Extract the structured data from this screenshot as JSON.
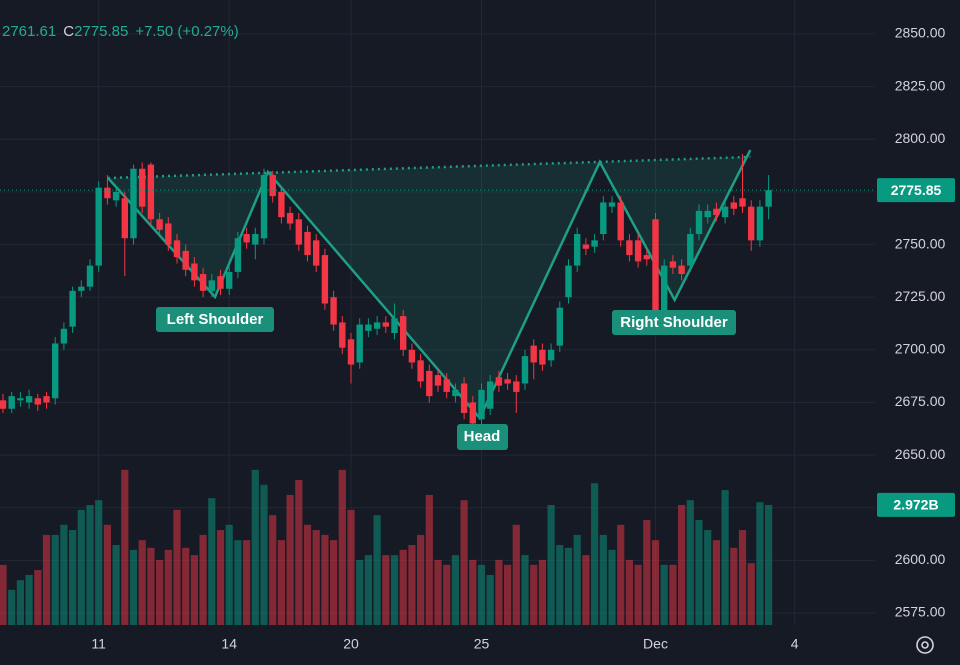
{
  "chart_data": {
    "type": "candlestick",
    "header": {
      "low": "2761.61",
      "close_label": "C",
      "close": "2775.85",
      "change": "+7.50 (+0.27%)"
    },
    "up_color": "#089981",
    "down_color": "#f23645",
    "pattern_color": "#1f9e88",
    "grid": true,
    "ylim": [
      2569.3,
      2866.15
    ],
    "yticks": [
      {
        "value": 2575,
        "label": "2575.00"
      },
      {
        "value": 2600,
        "label": "2600.00"
      },
      {
        "value": 2625,
        "label": "2625.00"
      },
      {
        "value": 2650,
        "label": "2650.00"
      },
      {
        "value": 2675,
        "label": "2675.00"
      },
      {
        "value": 2700,
        "label": "2700.00"
      },
      {
        "value": 2725,
        "label": "2725.00"
      },
      {
        "value": 2750,
        "label": "2750.00"
      },
      {
        "value": 2775,
        "label": "2775.00"
      },
      {
        "value": 2800,
        "label": "2800.00"
      },
      {
        "value": 2825,
        "label": "2825.00"
      },
      {
        "value": 2850,
        "label": "2850.00"
      }
    ],
    "xticks": [
      {
        "value": 11,
        "label": "11"
      },
      {
        "value": 26,
        "label": "14"
      },
      {
        "value": 40,
        "label": "20"
      },
      {
        "value": 55,
        "label": "25"
      },
      {
        "value": 75,
        "label": "Dec"
      },
      {
        "value": 91,
        "label": "4"
      }
    ],
    "last_price": {
      "value": 2775.85,
      "label": "2775.85"
    },
    "volume_lim": [
      0,
      15.47
    ],
    "last_volume": {
      "value": 2.972,
      "label": "2.972B"
    },
    "ohlc": [
      [
        2676,
        2679,
        2670,
        2672
      ],
      [
        2672,
        2680,
        2670,
        2678
      ],
      [
        2676,
        2680,
        2673,
        2677
      ],
      [
        2675,
        2681,
        2672,
        2678
      ],
      [
        2677,
        2679,
        2671,
        2674
      ],
      [
        2678,
        2680,
        2672,
        2675
      ],
      [
        2677,
        2706,
        2674,
        2703
      ],
      [
        2703,
        2713,
        2700,
        2710
      ],
      [
        2711,
        2730,
        2708,
        2728
      ],
      [
        2728,
        2733,
        2725,
        2730
      ],
      [
        2730,
        2743,
        2728,
        2740
      ],
      [
        2740,
        2780,
        2737,
        2777
      ],
      [
        2777,
        2783,
        2769,
        2772
      ],
      [
        2771,
        2778,
        2768,
        2775
      ],
      [
        2772,
        2775,
        2735,
        2753
      ],
      [
        2753,
        2788,
        2750,
        2786
      ],
      [
        2786,
        2789,
        2765,
        2768
      ],
      [
        2788,
        2789,
        2759,
        2762
      ],
      [
        2762,
        2765,
        2754,
        2757
      ],
      [
        2760,
        2763,
        2747,
        2750
      ],
      [
        2752,
        2755,
        2741,
        2744
      ],
      [
        2747,
        2750,
        2735,
        2738
      ],
      [
        2741,
        2744,
        2730,
        2733
      ],
      [
        2736,
        2739,
        2725,
        2728
      ],
      [
        2728,
        2736,
        2725,
        2733
      ],
      [
        2735,
        2738,
        2726,
        2729
      ],
      [
        2729,
        2740,
        2726,
        2737
      ],
      [
        2737,
        2756,
        2734,
        2753
      ],
      [
        2755,
        2758,
        2748,
        2751
      ],
      [
        2750,
        2758,
        2743,
        2755
      ],
      [
        2753,
        2786,
        2750,
        2783
      ],
      [
        2783,
        2785,
        2770,
        2773
      ],
      [
        2775,
        2778,
        2760,
        2763
      ],
      [
        2765,
        2768,
        2757,
        2760
      ],
      [
        2762,
        2765,
        2747,
        2750
      ],
      [
        2756,
        2759,
        2742,
        2745
      ],
      [
        2752,
        2755,
        2737,
        2740
      ],
      [
        2745,
        2748,
        2719,
        2722
      ],
      [
        2725,
        2728,
        2709,
        2712
      ],
      [
        2713,
        2716,
        2698,
        2701
      ],
      [
        2705,
        2708,
        2684,
        2693
      ],
      [
        2694,
        2715,
        2691,
        2712
      ],
      [
        2709,
        2715,
        2706,
        2712
      ],
      [
        2710,
        2716,
        2707,
        2713
      ],
      [
        2713,
        2716,
        2708,
        2711
      ],
      [
        2708,
        2722,
        2705,
        2715
      ],
      [
        2716,
        2719,
        2697,
        2700
      ],
      [
        2700,
        2703,
        2691,
        2694
      ],
      [
        2695,
        2698,
        2682,
        2685
      ],
      [
        2690,
        2693,
        2675,
        2678
      ],
      [
        2688,
        2691,
        2680,
        2683
      ],
      [
        2686,
        2689,
        2677,
        2680
      ],
      [
        2678,
        2684,
        2675,
        2681
      ],
      [
        2684,
        2687,
        2667,
        2670
      ],
      [
        2675,
        2678,
        2662,
        2665
      ],
      [
        2667,
        2684,
        2664,
        2681
      ],
      [
        2672,
        2688,
        2669,
        2685
      ],
      [
        2687,
        2690,
        2680,
        2683
      ],
      [
        2686,
        2689,
        2681,
        2684
      ],
      [
        2685,
        2688,
        2670,
        2680
      ],
      [
        2684,
        2700,
        2681,
        2697
      ],
      [
        2702,
        2705,
        2686,
        2694
      ],
      [
        2700,
        2703,
        2690,
        2693
      ],
      [
        2695,
        2703,
        2692,
        2700
      ],
      [
        2702,
        2723,
        2699,
        2720
      ],
      [
        2725,
        2743,
        2722,
        2740
      ],
      [
        2740,
        2758,
        2737,
        2755
      ],
      [
        2750,
        2753,
        2745,
        2748
      ],
      [
        2749,
        2755,
        2746,
        2752
      ],
      [
        2755,
        2773,
        2752,
        2770
      ],
      [
        2768,
        2773,
        2765,
        2770
      ],
      [
        2770,
        2773,
        2749,
        2752
      ],
      [
        2752,
        2755,
        2742,
        2745
      ],
      [
        2752,
        2755,
        2739,
        2742
      ],
      [
        2745,
        2748,
        2740,
        2743
      ],
      [
        2762,
        2765,
        2715,
        2718
      ],
      [
        2718,
        2743,
        2715,
        2740
      ],
      [
        2742,
        2745,
        2736,
        2739
      ],
      [
        2740,
        2743,
        2733,
        2736
      ],
      [
        2740,
        2758,
        2737,
        2755
      ],
      [
        2755,
        2769,
        2752,
        2766
      ],
      [
        2763,
        2769,
        2760,
        2766
      ],
      [
        2767,
        2770,
        2761,
        2764
      ],
      [
        2763,
        2771,
        2760,
        2768
      ],
      [
        2770,
        2773,
        2764,
        2767
      ],
      [
        2772,
        2793,
        2765,
        2768
      ],
      [
        2768,
        2771,
        2747,
        2752
      ],
      [
        2752,
        2771,
        2749,
        2768
      ],
      [
        2768,
        2783,
        2762,
        2775.85
      ]
    ],
    "volume": [
      1.49,
      0.87,
      1.11,
      1.24,
      1.36,
      2.23,
      2.23,
      2.48,
      2.35,
      2.85,
      2.97,
      3.09,
      2.48,
      1.98,
      3.84,
      1.86,
      2.1,
      1.91,
      1.61,
      1.86,
      2.85,
      1.91,
      1.73,
      2.23,
      3.14,
      2.35,
      2.48,
      2.1,
      2.1,
      3.84,
      3.47,
      2.72,
      2.1,
      3.22,
      3.59,
      2.48,
      2.35,
      2.23,
      2.1,
      3.84,
      2.85,
      1.61,
      1.73,
      2.72,
      1.73,
      1.73,
      1.86,
      1.98,
      2.23,
      3.22,
      1.61,
      1.49,
      1.73,
      3.09,
      1.61,
      1.49,
      1.24,
      1.61,
      1.49,
      2.48,
      1.73,
      1.49,
      1.61,
      2.97,
      1.98,
      1.91,
      2.23,
      1.73,
      3.51,
      2.23,
      1.86,
      2.48,
      1.61,
      1.49,
      2.6,
      2.1,
      1.49,
      1.49,
      2.97,
      3.09,
      2.6,
      2.35,
      2.1,
      3.34,
      1.91,
      2.35,
      1.53,
      3.04,
      2.972
    ],
    "pattern": {
      "x": [
        12.07,
        24.37,
        30.46,
        54.8,
        68.6,
        77.2,
        85.9
      ],
      "y": [
        2781.6,
        2725.1,
        2784.5,
        2667.6,
        2789.2,
        2723.7,
        2794.9
      ]
    },
    "neckline": {
      "x": [
        12.07,
        85.9
      ],
      "y": [
        2781.6,
        2791.6
      ]
    },
    "annotations": [
      "Left Shoulder",
      "Head",
      "Right Shoulder"
    ]
  }
}
